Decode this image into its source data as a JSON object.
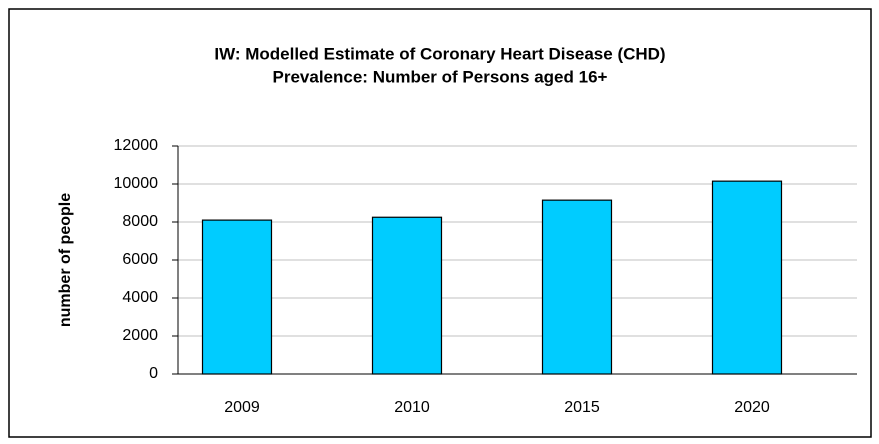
{
  "chart_data": {
    "type": "bar",
    "title": [
      "IW: Modelled Estimate of Coronary Heart Disease (CHD)",
      "Prevalence: Number of Persons aged 16+"
    ],
    "y_label": "number of people",
    "categories": [
      "2009",
      "2010",
      "2015",
      "2020"
    ],
    "values": [
      8100,
      8250,
      9150,
      10150
    ],
    "color": "#00ccff",
    "ylim": [
      0,
      12000
    ],
    "yticks": [
      0,
      2000,
      4000,
      6000,
      8000,
      10000,
      12000
    ],
    "grid": true
  }
}
